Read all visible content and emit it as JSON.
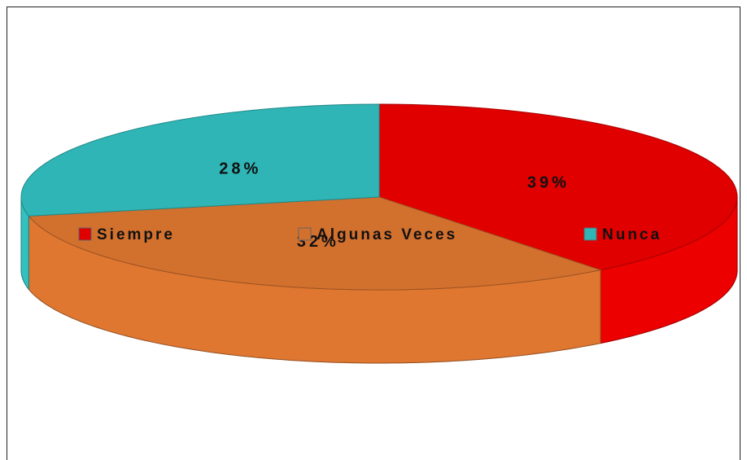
{
  "chart_data": {
    "type": "pie3d",
    "categories": [
      "Siempre",
      "Algunas Veces",
      "Nunca"
    ],
    "values": [
      39,
      32,
      28
    ],
    "value_labels": [
      "39%",
      "32%",
      "28%"
    ],
    "colors": [
      "#e00000",
      "#d2702e",
      "#2fb5b5"
    ],
    "legend": "center"
  }
}
